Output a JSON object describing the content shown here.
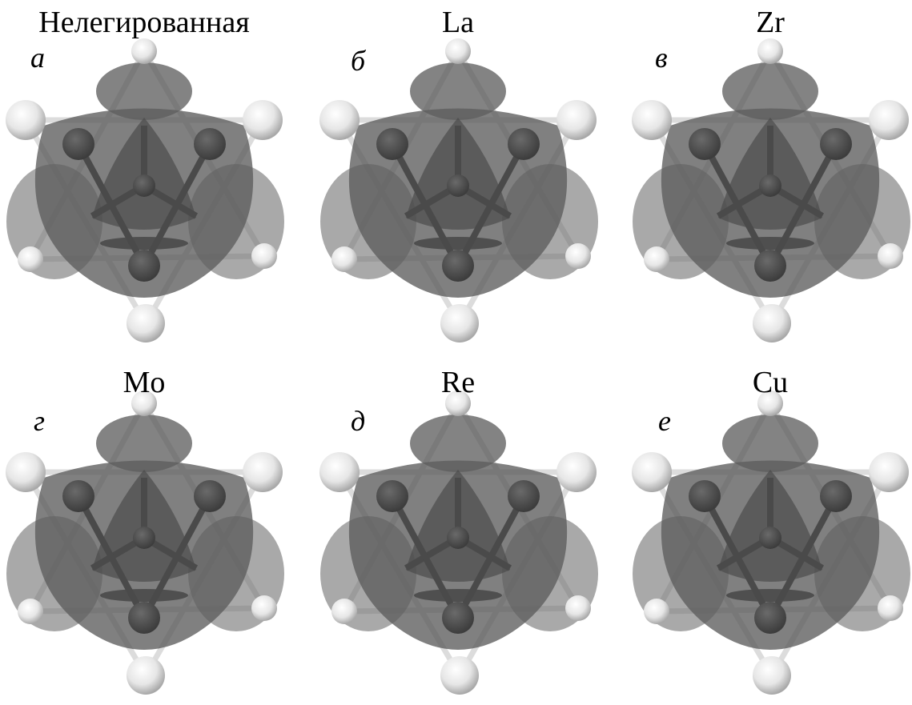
{
  "panels": [
    {
      "title": "Нелегированная",
      "label": "а"
    },
    {
      "title": "La",
      "label": "б"
    },
    {
      "title": "Zr",
      "label": "в"
    },
    {
      "title": "Mo",
      "label": "г"
    },
    {
      "title": "Re",
      "label": "д"
    },
    {
      "title": "Cu",
      "label": "е"
    }
  ]
}
